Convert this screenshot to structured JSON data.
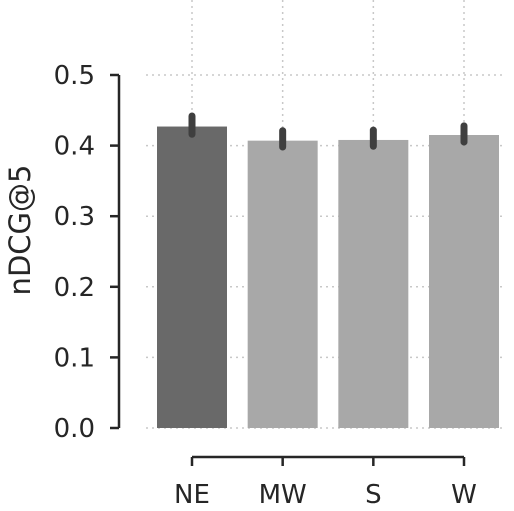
{
  "chart_data": {
    "type": "bar",
    "title": "",
    "xlabel": "",
    "ylabel": "nDCG@5",
    "categories": [
      "NE",
      "MW",
      "S",
      "W"
    ],
    "values": [
      0.427,
      0.407,
      0.408,
      0.415
    ],
    "error_low": [
      0.416,
      0.398,
      0.399,
      0.405
    ],
    "error_high": [
      0.442,
      0.421,
      0.422,
      0.428
    ],
    "colors": [
      "#696969",
      "#a8a8a8",
      "#a8a8a8",
      "#a8a8a8"
    ],
    "error_color": "#3f3f3f",
    "ylim": [
      0,
      0.5
    ],
    "yticks": [
      "0.0",
      "0.1",
      "0.2",
      "0.3",
      "0.4",
      "0.5"
    ],
    "grid": true,
    "legend": "none"
  }
}
